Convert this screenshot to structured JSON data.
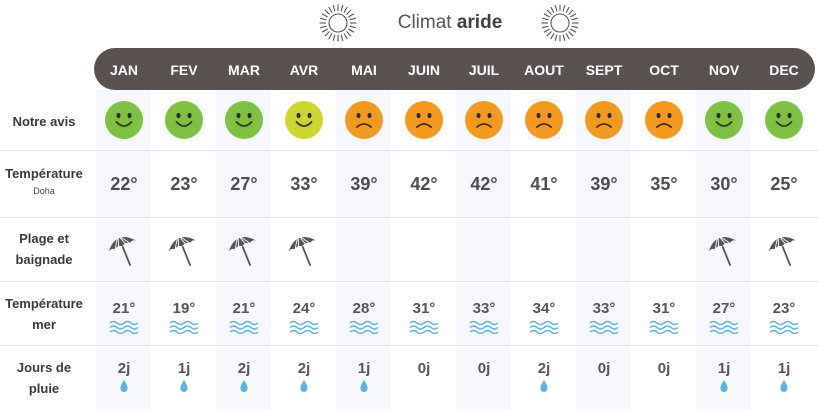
{
  "title": {
    "prefix": "Climat",
    "bold": "aride"
  },
  "row_labels": {
    "avis": "Notre avis",
    "temp": "Température",
    "temp_sub": "Doha",
    "plage_1": "Plage et",
    "plage_2": "baignade",
    "mer_1": "Température",
    "mer_2": "mer",
    "pluie_1": "Jours de",
    "pluie_2": "pluie"
  },
  "colors": {
    "happy_green": "#7cc240",
    "happy_yellow": "#cfd52f",
    "sad_orange": "#f39a1e",
    "water_blue": "#5ab3e0",
    "header_bg": "#595150"
  },
  "months": [
    {
      "name": "JAN",
      "mood": "happy",
      "temp": "22°",
      "beach": true,
      "sea": "21°",
      "rain": "2j",
      "rain_drop": true
    },
    {
      "name": "FEV",
      "mood": "happy",
      "temp": "23°",
      "beach": true,
      "sea": "19°",
      "rain": "1j",
      "rain_drop": true
    },
    {
      "name": "MAR",
      "mood": "happy",
      "temp": "27°",
      "beach": true,
      "sea": "21°",
      "rain": "2j",
      "rain_drop": true
    },
    {
      "name": "AVR",
      "mood": "happy-yellow",
      "temp": "33°",
      "beach": true,
      "sea": "24°",
      "rain": "2j",
      "rain_drop": true
    },
    {
      "name": "MAI",
      "mood": "sad",
      "temp": "39°",
      "beach": false,
      "sea": "28°",
      "rain": "1j",
      "rain_drop": true
    },
    {
      "name": "JUIN",
      "mood": "sad",
      "temp": "42°",
      "beach": false,
      "sea": "31°",
      "rain": "0j",
      "rain_drop": false
    },
    {
      "name": "JUIL",
      "mood": "sad",
      "temp": "42°",
      "beach": false,
      "sea": "33°",
      "rain": "0j",
      "rain_drop": false
    },
    {
      "name": "AOUT",
      "mood": "sad",
      "temp": "41°",
      "beach": false,
      "sea": "34°",
      "rain": "2j",
      "rain_drop": true
    },
    {
      "name": "SEPT",
      "mood": "sad",
      "temp": "39°",
      "beach": false,
      "sea": "33°",
      "rain": "0j",
      "rain_drop": false
    },
    {
      "name": "OCT",
      "mood": "sad",
      "temp": "35°",
      "beach": false,
      "sea": "31°",
      "rain": "0j",
      "rain_drop": false
    },
    {
      "name": "NOV",
      "mood": "happy",
      "temp": "30°",
      "beach": true,
      "sea": "27°",
      "rain": "1j",
      "rain_drop": true
    },
    {
      "name": "DEC",
      "mood": "happy",
      "temp": "25°",
      "beach": true,
      "sea": "23°",
      "rain": "1j",
      "rain_drop": true
    }
  ]
}
